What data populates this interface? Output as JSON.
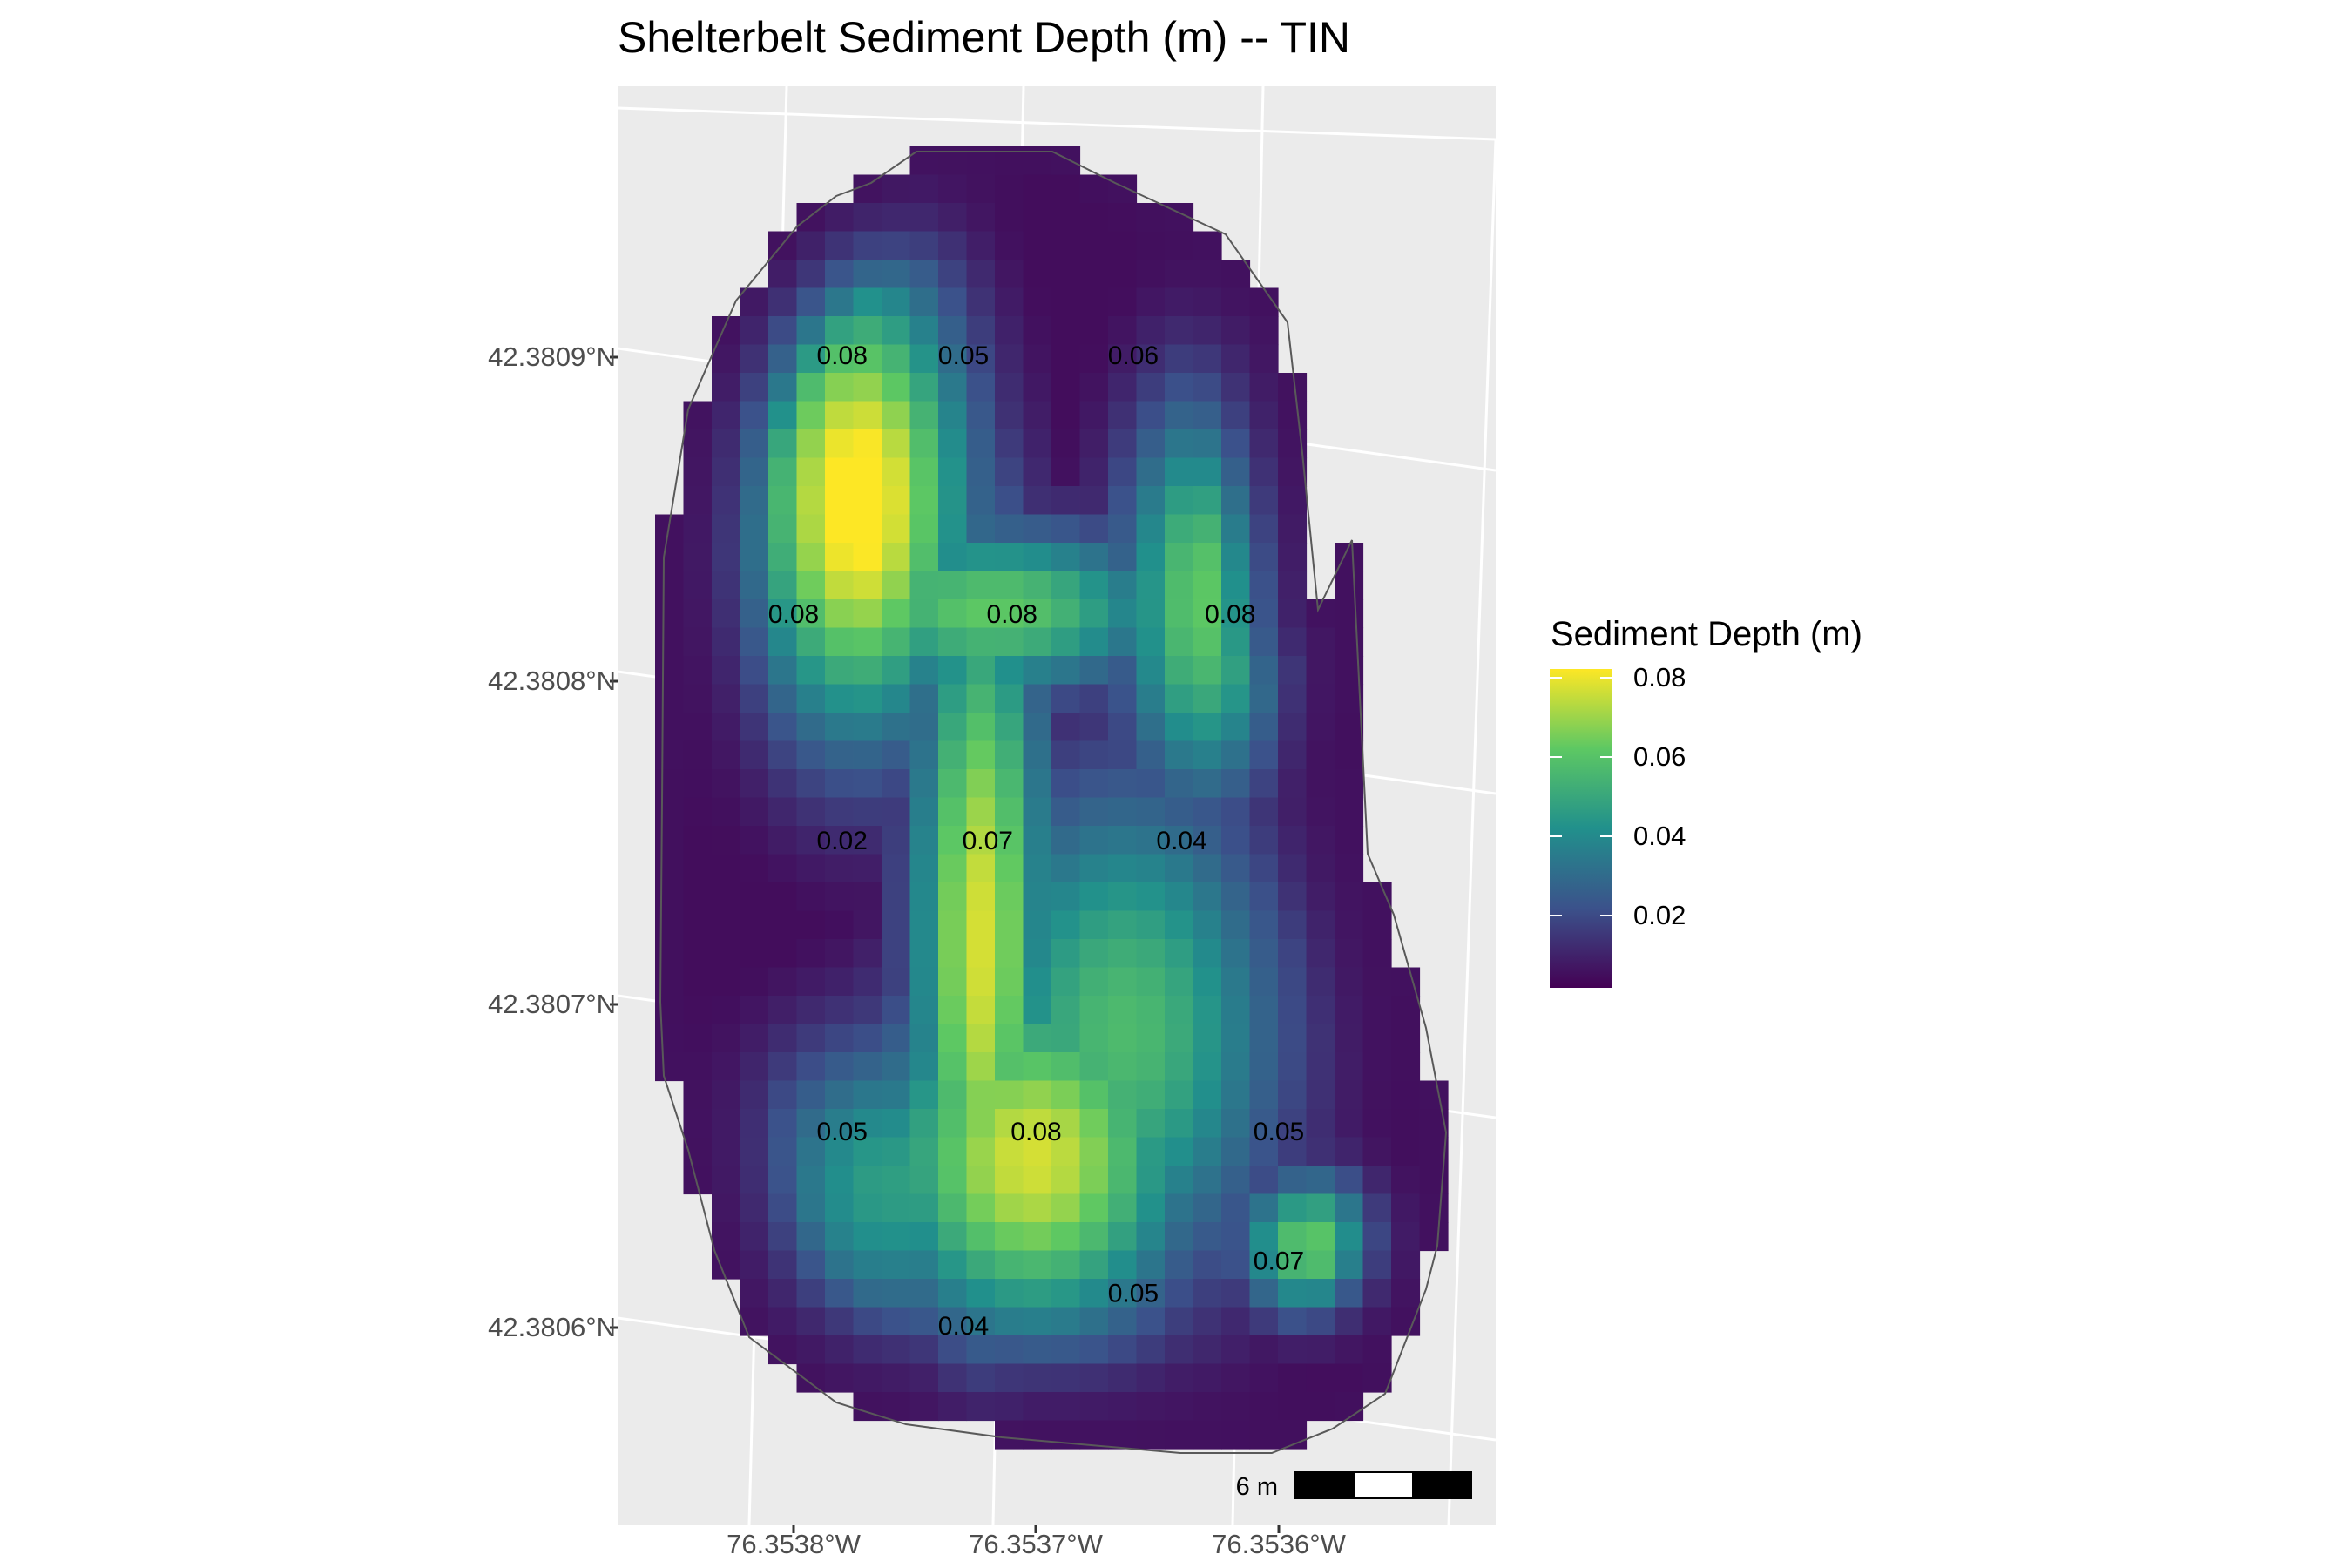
{
  "title": "Shelterbelt Sediment Depth (m) -- TIN",
  "y_axis": {
    "ticks": [
      {
        "label": "42.3809°N",
        "value": 42.3809
      },
      {
        "label": "42.3808°N",
        "value": 42.3808
      },
      {
        "label": "42.3807°N",
        "value": 42.3807
      },
      {
        "label": "42.3806°N",
        "value": 42.3806
      }
    ]
  },
  "x_axis": {
    "ticks": [
      {
        "label": "76.3538°W",
        "value": -76.3538
      },
      {
        "label": "76.3537°W",
        "value": -76.3537
      },
      {
        "label": "76.3536°W",
        "value": -76.3536
      }
    ]
  },
  "legend": {
    "title": "Sediment Depth (m)",
    "palette": "viridis",
    "range": [
      0.0,
      0.08
    ],
    "breaks": [
      {
        "label": "0.08",
        "value": 0.08
      },
      {
        "label": "0.06",
        "value": 0.06
      },
      {
        "label": "0.04",
        "value": 0.04
      },
      {
        "label": "0.02",
        "value": 0.02
      }
    ]
  },
  "scale_bar": {
    "label": "6 m"
  },
  "colors": {
    "panel_background": "#ebebeb",
    "graticule": "#ffffff",
    "boundary": "#595959",
    "palette_stops": [
      "#440154",
      "#3b528b",
      "#21908c",
      "#5dc863",
      "#fde725"
    ]
  },
  "chart_data": {
    "type": "heatmap",
    "title": "Shelterbelt Sediment Depth (m) -- TIN",
    "value_range": [
      0.0,
      0.08
    ],
    "annotations": [
      {
        "label": "0.08",
        "lon": -76.35378,
        "lat": 42.3809,
        "value": 0.08
      },
      {
        "label": "0.05",
        "lon": -76.35373,
        "lat": 42.3809,
        "value": 0.05
      },
      {
        "label": "0.06",
        "lon": -76.35366,
        "lat": 42.3809,
        "value": 0.06
      },
      {
        "label": "0.08",
        "lon": -76.3538,
        "lat": 42.38082,
        "value": 0.08
      },
      {
        "label": "0.08",
        "lon": -76.35371,
        "lat": 42.38082,
        "value": 0.08
      },
      {
        "label": "0.08",
        "lon": -76.35362,
        "lat": 42.38082,
        "value": 0.08
      },
      {
        "label": "0.02",
        "lon": -76.35378,
        "lat": 42.38075,
        "value": 0.02
      },
      {
        "label": "0.07",
        "lon": -76.35372,
        "lat": 42.38075,
        "value": 0.07
      },
      {
        "label": "0.04",
        "lon": -76.35364,
        "lat": 42.38075,
        "value": 0.04
      },
      {
        "label": "0.05",
        "lon": -76.35378,
        "lat": 42.38066,
        "value": 0.05
      },
      {
        "label": "0.08",
        "lon": -76.3537,
        "lat": 42.38066,
        "value": 0.08
      },
      {
        "label": "0.05",
        "lon": -76.3536,
        "lat": 42.38066,
        "value": 0.05
      },
      {
        "label": "0.07",
        "lon": -76.3536,
        "lat": 42.38062,
        "value": 0.07
      },
      {
        "label": "0.05",
        "lon": -76.35366,
        "lat": 42.38061,
        "value": 0.05
      },
      {
        "label": "0.04",
        "lon": -76.35373,
        "lat": 42.3806,
        "value": 0.04
      }
    ]
  }
}
